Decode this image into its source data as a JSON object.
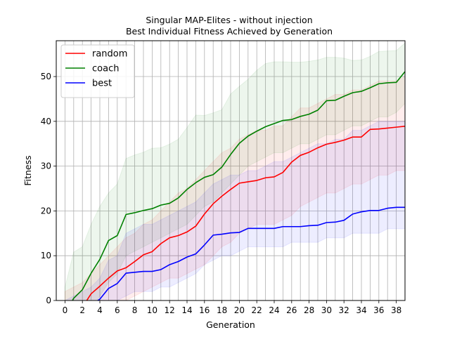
{
  "chart_data": {
    "type": "line",
    "title": "Singular MAP-Elites - without injection",
    "subtitle": "Best Individual Fitness Achieved by Generation",
    "xlabel": "Generation",
    "ylabel": "Fitness",
    "xlim": [
      -1,
      39
    ],
    "ylim": [
      0,
      58
    ],
    "xticks": [
      0,
      2,
      4,
      6,
      8,
      10,
      12,
      14,
      16,
      18,
      20,
      22,
      24,
      26,
      28,
      30,
      32,
      34,
      36,
      38
    ],
    "yticks": [
      0,
      10,
      20,
      30,
      40,
      50
    ],
    "grid": "vertical lines at every generation, horizontal lines at every y tick",
    "legend_position": "top-left",
    "x": [
      0,
      1,
      2,
      3,
      4,
      5,
      6,
      7,
      8,
      9,
      10,
      11,
      12,
      13,
      14,
      15,
      16,
      17,
      18,
      19,
      20,
      21,
      22,
      23,
      24,
      25,
      26,
      27,
      28,
      29,
      30,
      31,
      32,
      33,
      34,
      35,
      36,
      37,
      38,
      39
    ],
    "series": [
      {
        "name": "random",
        "color": "#ff0000",
        "values": [
          -3.5,
          -2.8,
          -1.5,
          1.5,
          3.2,
          5.0,
          6.6,
          7.3,
          8.7,
          10.2,
          10.9,
          12.7,
          14.0,
          14.5,
          15.3,
          16.6,
          19.3,
          21.6,
          23.3,
          24.8,
          26.2,
          26.5,
          26.8,
          27.4,
          27.6,
          28.6,
          30.9,
          32.4,
          33.1,
          34.1,
          34.9,
          35.3,
          35.8,
          36.5,
          36.5,
          38.2,
          38.3,
          38.5,
          38.7,
          38.9
        ],
        "band_lower": [
          -8,
          -8,
          -6,
          -5,
          -4,
          -2,
          -1,
          0,
          1,
          2,
          3,
          4,
          5,
          5,
          6,
          7,
          8,
          10,
          12,
          13,
          15,
          16,
          17,
          17,
          17,
          18,
          19,
          21,
          22,
          23,
          24,
          24,
          25,
          26,
          26,
          27,
          28,
          28,
          29,
          29
        ],
        "band_upper": [
          2,
          3,
          4,
          6,
          8,
          10,
          12,
          14,
          15,
          17,
          18,
          20,
          22,
          24,
          25,
          27,
          29,
          31,
          33,
          34,
          36,
          37,
          38,
          38,
          39,
          39,
          41,
          43,
          43,
          44,
          45,
          46,
          46,
          47,
          47,
          48,
          49,
          49,
          49,
          50
        ]
      },
      {
        "name": "coach",
        "color": "#008000",
        "values": [
          -3,
          0.5,
          2.4,
          6.1,
          9.2,
          13.4,
          14.5,
          19.2,
          19.6,
          20.1,
          20.5,
          21.3,
          21.7,
          22.9,
          24.8,
          26.3,
          27.5,
          28.1,
          29.8,
          32.6,
          35.1,
          36.7,
          37.8,
          38.8,
          39.5,
          40.2,
          40.4,
          41.1,
          41.6,
          42.5,
          44.6,
          44.7,
          45.6,
          46.4,
          46.7,
          47.5,
          48.4,
          48.6,
          48.7,
          51.1
        ],
        "band_lower": [
          -8,
          -6,
          -4,
          -2,
          1,
          4,
          6,
          10,
          11,
          12,
          13,
          14,
          15,
          16,
          17,
          19,
          21,
          22,
          24,
          26,
          28,
          30,
          31,
          32,
          33,
          33,
          34,
          35,
          35,
          36,
          37,
          37,
          38,
          39,
          39,
          40,
          41,
          41,
          42,
          44
        ],
        "band_upper": [
          3,
          10.8,
          12,
          17,
          21,
          24,
          26,
          31.7,
          32.5,
          33.1,
          34,
          34.1,
          34.9,
          36,
          38.6,
          41.4,
          41.3,
          41.9,
          42.6,
          46.1,
          47.8,
          49.4,
          51.4,
          52.9,
          53.3,
          53.3,
          53.2,
          53.2,
          53.4,
          53.7,
          54.3,
          54.3,
          54.1,
          53.6,
          53.7,
          54.5,
          55.6,
          55.7,
          55.8,
          57.5
        ]
      },
      {
        "name": "best",
        "color": "#0000ff",
        "values": [
          -4,
          -3,
          -2,
          -1,
          0.3,
          2.7,
          3.8,
          6.1,
          6.3,
          6.5,
          6.5,
          6.9,
          8.0,
          8.7,
          9.7,
          10.4,
          12.4,
          14.6,
          14.8,
          15.1,
          15.2,
          16.1,
          16.1,
          16.1,
          16.1,
          16.5,
          16.5,
          16.5,
          16.7,
          16.8,
          17.4,
          17.5,
          17.9,
          19.3,
          19.8,
          20.1,
          20.1,
          20.6,
          20.8,
          20.8
        ],
        "band_lower": [
          -6,
          -6,
          -5,
          -4,
          -2,
          0,
          0,
          1,
          2,
          2,
          2,
          3,
          3,
          4,
          5,
          6,
          8,
          9,
          10,
          10,
          11,
          12,
          12,
          12,
          12,
          12,
          13,
          13,
          13,
          13,
          14,
          14,
          14,
          15,
          15,
          15,
          15,
          16,
          16,
          16
        ],
        "band_upper": [
          0,
          1,
          2,
          3,
          5,
          9,
          10,
          15,
          16,
          17,
          17,
          18,
          19,
          20,
          21,
          22,
          24,
          26,
          27,
          28,
          28,
          29,
          29,
          30,
          31,
          31,
          32,
          33,
          34,
          35,
          35,
          36,
          36,
          38,
          38,
          39,
          40,
          40,
          40,
          40
        ]
      }
    ]
  }
}
